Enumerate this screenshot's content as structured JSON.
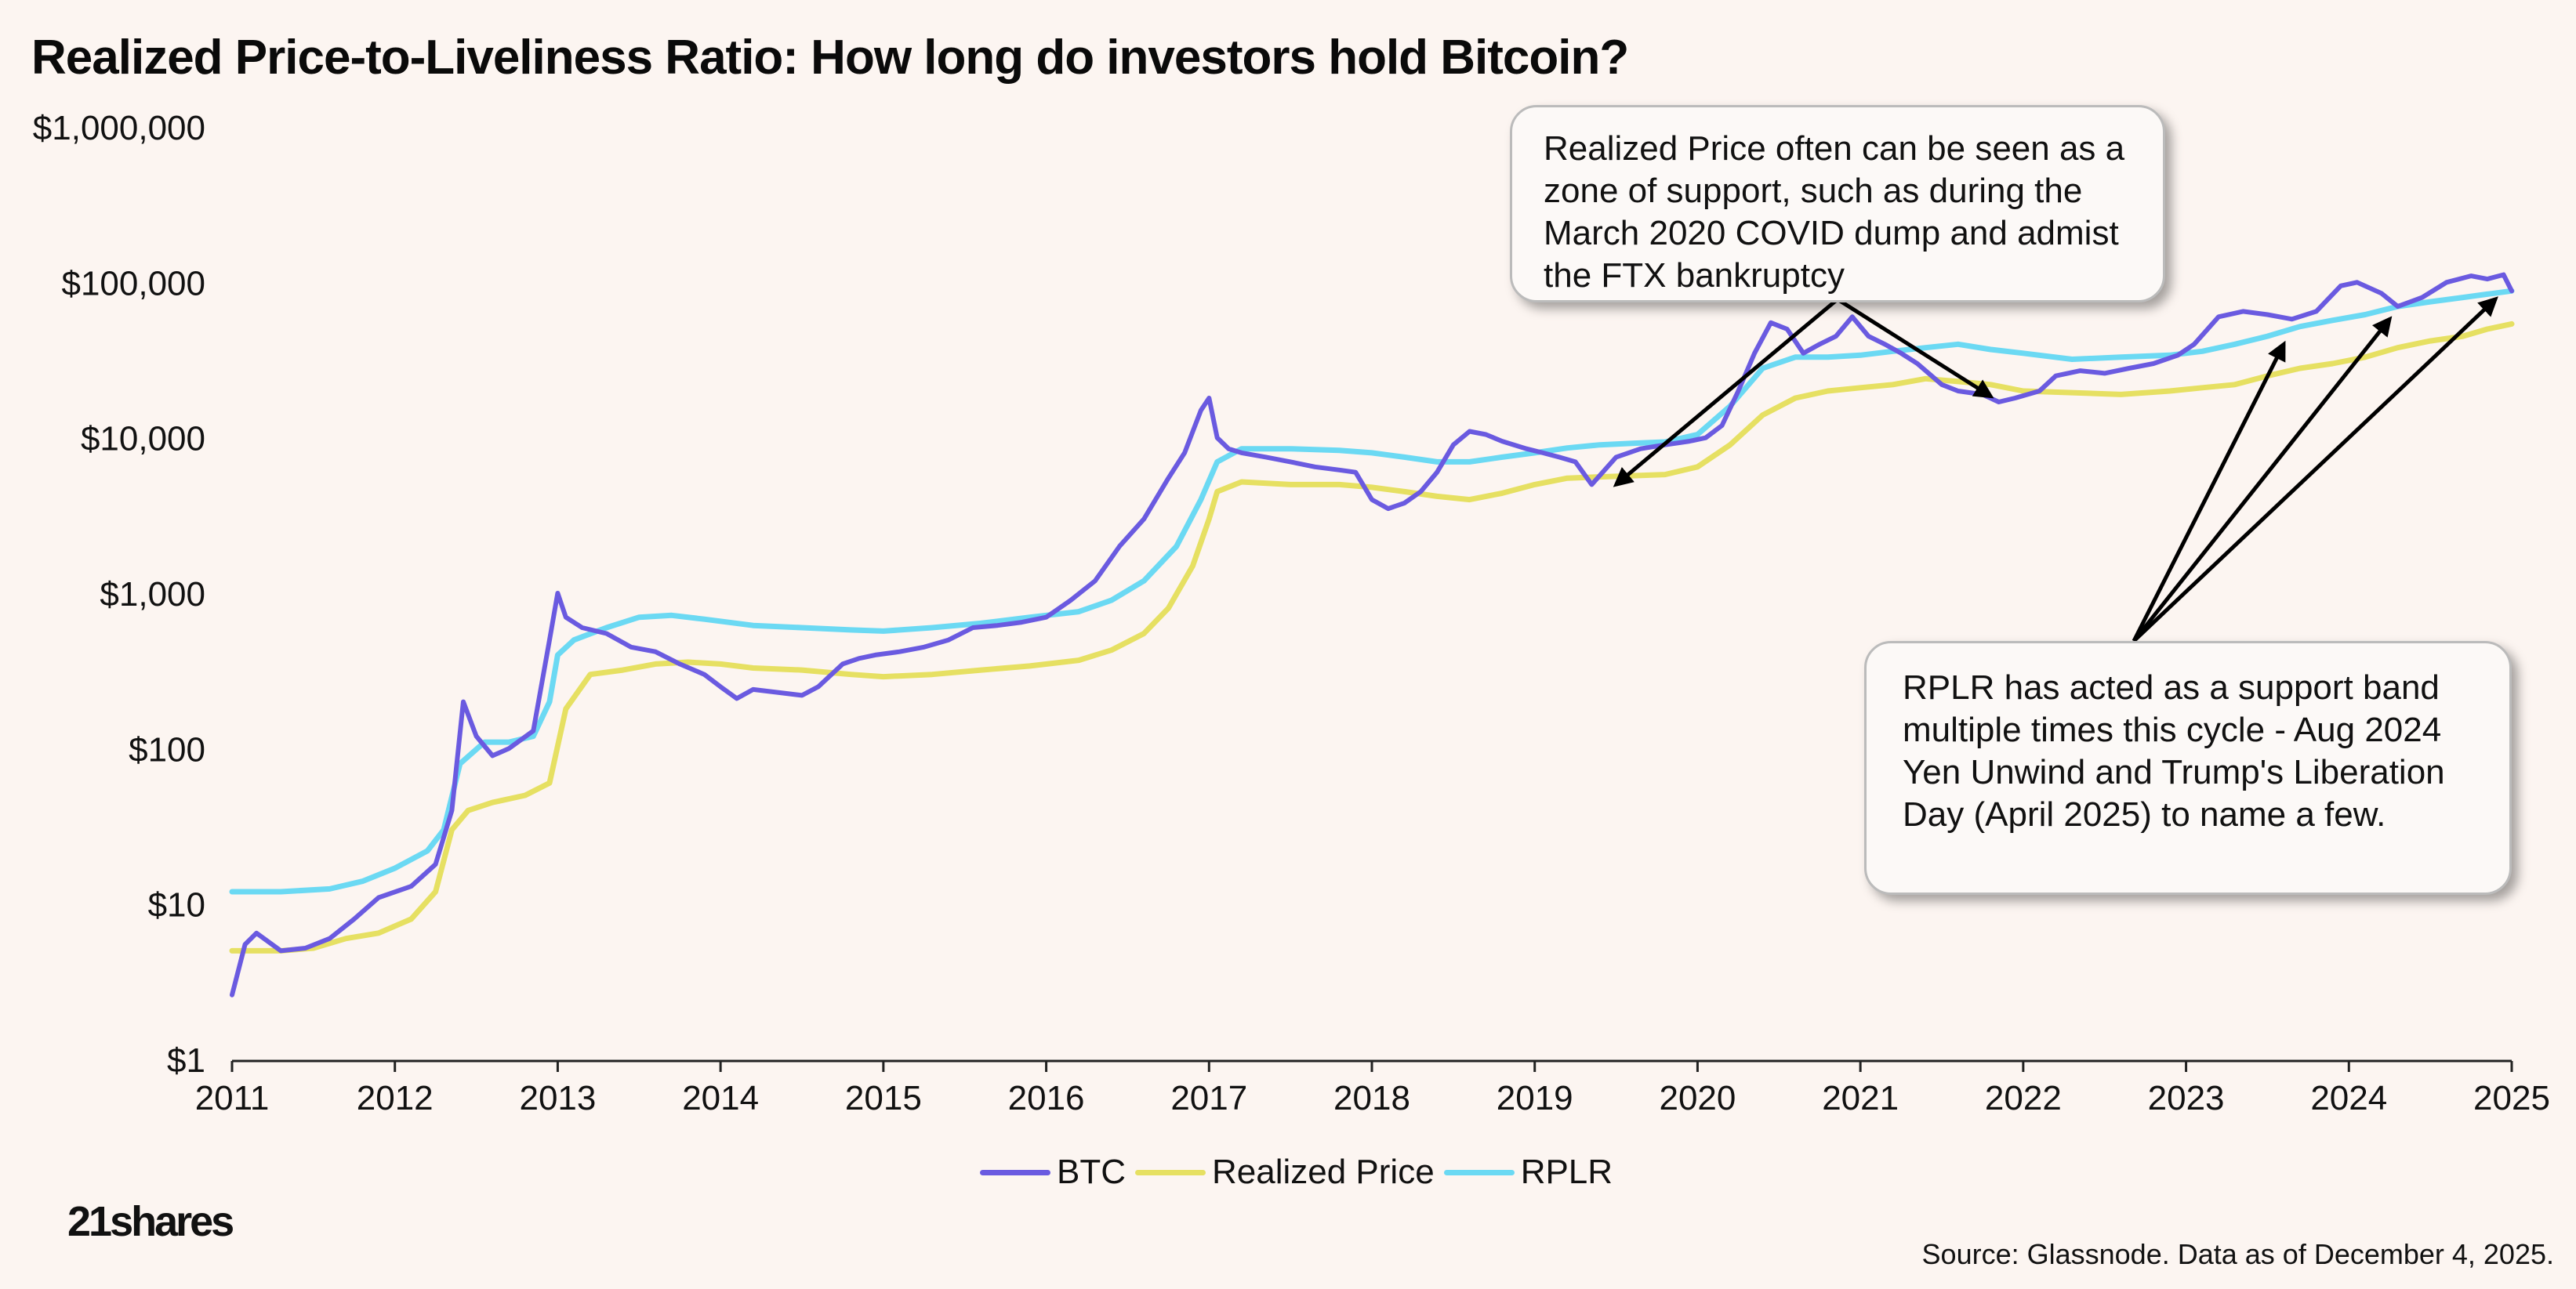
{
  "chart_data": {
    "type": "line",
    "title": "Realized Price-to-Liveliness Ratio: How long do investors hold Bitcoin?",
    "yscale": "log",
    "ylim": [
      1,
      1000000
    ],
    "xlim": [
      2011,
      2025
    ],
    "y_ticks": [
      1,
      10,
      100,
      1000,
      10000,
      100000,
      1000000
    ],
    "y_tick_labels": [
      "$1",
      "$10",
      "$100",
      "$1,000",
      "$10,000",
      "$100,000",
      "$1,000,000"
    ],
    "x_ticks": [
      2011,
      2012,
      2013,
      2014,
      2015,
      2016,
      2017,
      2018,
      2019,
      2020,
      2021,
      2022,
      2023,
      2024,
      2025
    ],
    "x_tick_labels": [
      "2011",
      "2012",
      "2013",
      "2014",
      "2015",
      "2016",
      "2017",
      "2018",
      "2019",
      "2020",
      "2021",
      "2022",
      "2023",
      "2024",
      "2025"
    ],
    "series": [
      {
        "name": "BTC",
        "color": "#6a5ae0",
        "x": [
          2011.0,
          2011.08,
          2011.15,
          2011.3,
          2011.45,
          2011.6,
          2011.75,
          2011.9,
          2012.1,
          2012.25,
          2012.35,
          2012.42,
          2012.5,
          2012.6,
          2012.7,
          2012.85,
          2012.95,
          2013.0,
          2013.05,
          2013.15,
          2013.3,
          2013.45,
          2013.6,
          2013.75,
          2013.9,
          2014.0,
          2014.1,
          2014.2,
          2014.35,
          2014.5,
          2014.6,
          2014.75,
          2014.85,
          2014.95,
          2015.1,
          2015.25,
          2015.4,
          2015.55,
          2015.7,
          2015.85,
          2016.0,
          2016.15,
          2016.3,
          2016.45,
          2016.6,
          2016.75,
          2016.85,
          2016.95,
          2017.0,
          2017.05,
          2017.12,
          2017.2,
          2017.35,
          2017.5,
          2017.65,
          2017.8,
          2017.9,
          2018.0,
          2018.1,
          2018.2,
          2018.3,
          2018.4,
          2018.5,
          2018.6,
          2018.7,
          2018.8,
          2018.95,
          2019.05,
          2019.15,
          2019.25,
          2019.35,
          2019.5,
          2019.65,
          2019.8,
          2019.95,
          2020.05,
          2020.15,
          2020.25,
          2020.35,
          2020.45,
          2020.55,
          2020.65,
          2020.75,
          2020.85,
          2020.95,
          2021.05,
          2021.15,
          2021.25,
          2021.35,
          2021.5,
          2021.6,
          2021.75,
          2021.85,
          2021.95,
          2022.1,
          2022.2,
          2022.35,
          2022.5,
          2022.65,
          2022.8,
          2022.95,
          2023.05,
          2023.2,
          2023.35,
          2023.5,
          2023.65,
          2023.8,
          2023.95,
          2024.05,
          2024.2,
          2024.3,
          2024.45,
          2024.6,
          2024.75,
          2024.85,
          2024.95,
          2025.0
        ],
        "values": [
          2.6,
          5.5,
          6.5,
          5.0,
          5.2,
          6.0,
          8.0,
          11.0,
          13.0,
          18.0,
          40.0,
          200.0,
          120.0,
          90.0,
          100.0,
          130.0,
          500.0,
          1000.0,
          700.0,
          600.0,
          550.0,
          450.0,
          420.0,
          350.0,
          300.0,
          250.0,
          210.0,
          240.0,
          230.0,
          220.0,
          250.0,
          350.0,
          380.0,
          400.0,
          420.0,
          450.0,
          500.0,
          600.0,
          620.0,
          650.0,
          700.0,
          900.0,
          1200.0,
          2000.0,
          3000.0,
          5500.0,
          8000.0,
          15000.0,
          18000.0,
          10000.0,
          8500.0,
          8000.0,
          7500.0,
          7000.0,
          6500.0,
          6200.0,
          6000.0,
          4000.0,
          3500.0,
          3800.0,
          4500.0,
          6000.0,
          9000.0,
          11000.0,
          10500.0,
          9500.0,
          8500.0,
          8000.0,
          7500.0,
          7000.0,
          5000.0,
          7500.0,
          8500.0,
          9000.0,
          9500.0,
          10000.0,
          12000.0,
          20000.0,
          35000.0,
          55000.0,
          50000.0,
          35000.0,
          40000.0,
          45000.0,
          60000.0,
          45000.0,
          40000.0,
          35000.0,
          30000.0,
          22000.0,
          20000.0,
          19000.0,
          17000.0,
          18000.0,
          20000.0,
          25000.0,
          27000.0,
          26000.0,
          28000.0,
          30000.0,
          34000.0,
          40000.0,
          60000.0,
          65000.0,
          62000.0,
          58000.0,
          65000.0,
          95000.0,
          100000.0,
          85000.0,
          70000.0,
          80000.0,
          100000.0,
          110000.0,
          105000.0,
          112000.0,
          88000.0
        ]
      },
      {
        "name": "Realized Price",
        "color": "#e6e062",
        "x": [
          2011.0,
          2011.3,
          2011.5,
          2011.7,
          2011.9,
          2012.1,
          2012.25,
          2012.35,
          2012.45,
          2012.6,
          2012.8,
          2012.95,
          2013.05,
          2013.2,
          2013.4,
          2013.6,
          2013.8,
          2014.0,
          2014.2,
          2014.5,
          2014.8,
          2015.0,
          2015.3,
          2015.6,
          2015.9,
          2016.2,
          2016.4,
          2016.6,
          2016.75,
          2016.9,
          2017.0,
          2017.05,
          2017.2,
          2017.5,
          2017.8,
          2018.0,
          2018.2,
          2018.4,
          2018.6,
          2018.8,
          2019.0,
          2019.2,
          2019.4,
          2019.6,
          2019.8,
          2020.0,
          2020.2,
          2020.4,
          2020.6,
          2020.8,
          2021.0,
          2021.2,
          2021.4,
          2021.6,
          2021.8,
          2022.0,
          2022.3,
          2022.6,
          2022.9,
          2023.1,
          2023.3,
          2023.5,
          2023.7,
          2023.9,
          2024.1,
          2024.3,
          2024.5,
          2024.7,
          2024.85,
          2025.0
        ],
        "values": [
          5.0,
          5.0,
          5.2,
          6.0,
          6.5,
          8.0,
          12.0,
          30.0,
          40.0,
          45.0,
          50.0,
          60.0,
          180.0,
          300.0,
          320.0,
          350.0,
          360.0,
          350.0,
          330.0,
          320.0,
          300.0,
          290.0,
          300.0,
          320.0,
          340.0,
          370.0,
          430.0,
          550.0,
          800.0,
          1500.0,
          3000.0,
          4500.0,
          5200.0,
          5000.0,
          5000.0,
          4800.0,
          4500.0,
          4200.0,
          4000.0,
          4400.0,
          5000.0,
          5500.0,
          5600.0,
          5700.0,
          5800.0,
          6500.0,
          9000.0,
          14000.0,
          18000.0,
          20000.0,
          21000.0,
          22000.0,
          24000.0,
          23000.0,
          22000.0,
          20000.0,
          19500.0,
          19000.0,
          20000.0,
          21000.0,
          22000.0,
          25000.0,
          28000.0,
          30000.0,
          33000.0,
          38000.0,
          42000.0,
          45000.0,
          50000.0,
          54000.0
        ]
      },
      {
        "name": "RPLR",
        "color": "#6bd9f3",
        "x": [
          2011.0,
          2011.3,
          2011.6,
          2011.8,
          2012.0,
          2012.2,
          2012.3,
          2012.4,
          2012.55,
          2012.7,
          2012.85,
          2012.95,
          2013.0,
          2013.1,
          2013.3,
          2013.5,
          2013.7,
          2013.9,
          2014.2,
          2014.5,
          2014.8,
          2015.0,
          2015.3,
          2015.6,
          2015.9,
          2016.2,
          2016.4,
          2016.6,
          2016.8,
          2016.95,
          2017.05,
          2017.2,
          2017.5,
          2017.8,
          2018.0,
          2018.2,
          2018.4,
          2018.6,
          2018.8,
          2019.0,
          2019.2,
          2019.4,
          2019.6,
          2019.8,
          2020.0,
          2020.2,
          2020.4,
          2020.6,
          2020.8,
          2021.0,
          2021.2,
          2021.4,
          2021.6,
          2021.8,
          2022.0,
          2022.3,
          2022.6,
          2022.9,
          2023.1,
          2023.3,
          2023.5,
          2023.7,
          2023.9,
          2024.1,
          2024.3,
          2024.5,
          2024.7,
          2024.85,
          2025.0
        ],
        "values": [
          12.0,
          12.0,
          12.5,
          14.0,
          17.0,
          22.0,
          30.0,
          80.0,
          110.0,
          110.0,
          120.0,
          200.0,
          400.0,
          500.0,
          600.0,
          700.0,
          720.0,
          680.0,
          620.0,
          600.0,
          580.0,
          570.0,
          600.0,
          640.0,
          700.0,
          760.0,
          900.0,
          1200.0,
          2000.0,
          4000.0,
          7000.0,
          8500.0,
          8500.0,
          8300.0,
          8000.0,
          7500.0,
          7000.0,
          7000.0,
          7500.0,
          8000.0,
          8600.0,
          9000.0,
          9200.0,
          9400.0,
          10500.0,
          16000.0,
          28000.0,
          33000.0,
          33000.0,
          34000.0,
          36000.0,
          38000.0,
          40000.0,
          37000.0,
          35000.0,
          32000.0,
          33000.0,
          34000.0,
          36000.0,
          40000.0,
          45000.0,
          52000.0,
          57000.0,
          62000.0,
          70000.0,
          75000.0,
          80000.0,
          84000.0,
          88000.0
        ]
      }
    ],
    "annotations": [
      {
        "id": "callout-1",
        "text": "Realized Price often can be seen as a zone of support, such as during the March 2020 COVID dump and admist the FTX bankruptcy",
        "arrow_targets": [
          [
            2019.5,
            5000
          ],
          [
            2021.8,
            18500
          ]
        ]
      },
      {
        "id": "callout-2",
        "text": "RPLR has acted as a support band multiple times this cycle - Aug 2024 Yen Unwind and Trump's Liberation Day (April 2025) to name a few.",
        "arrow_targets": [
          [
            2023.6,
            40000
          ],
          [
            2024.25,
            58000
          ],
          [
            2024.9,
            78000
          ]
        ]
      }
    ]
  },
  "legend": {
    "btc": "BTC",
    "realized": "Realized Price",
    "rplr": "RPLR"
  },
  "colors": {
    "btc": "#6a5ae0",
    "realized": "#e6e062",
    "rplr": "#6bd9f3"
  },
  "brand": {
    "logo": "21shares"
  },
  "source": "Source: Glassnode. Data as of December 4, 2025."
}
